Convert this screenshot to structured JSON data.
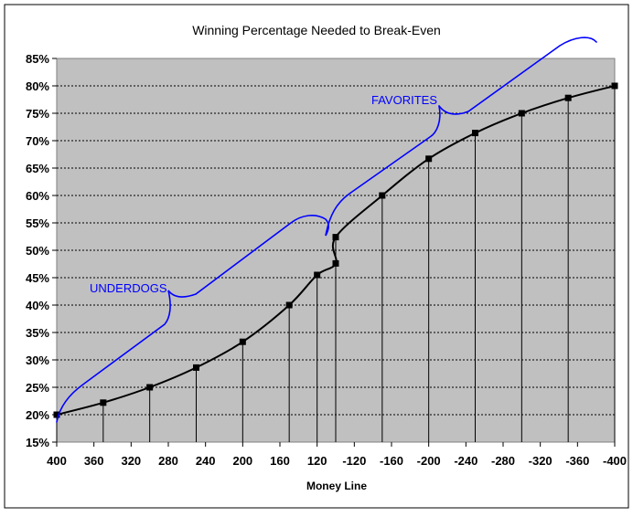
{
  "chart_data": {
    "type": "line",
    "title": "Winning Percentage Needed to Break-Even",
    "xlabel": "Money Line",
    "ylabel": "",
    "categories": [
      "400",
      "360",
      "320",
      "280",
      "240",
      "200",
      "160",
      "120",
      "-120",
      "-160",
      "-200",
      "-240",
      "-280",
      "-320",
      "-360",
      "-400"
    ],
    "x": [
      400,
      350,
      300,
      250,
      200,
      150,
      120,
      110,
      -110,
      -150,
      -200,
      -250,
      -300,
      -350,
      -400
    ],
    "series": [
      {
        "values": [
          20.0,
          22.2,
          25.0,
          28.6,
          33.3,
          40.0,
          45.5,
          47.6,
          52.4,
          60.0,
          66.7,
          71.4,
          75.0,
          77.8,
          80.0
        ],
        "marker": "square",
        "drop_lines": true
      }
    ],
    "trend_line": {
      "type": "smooth",
      "color": "#000000"
    },
    "ylim": [
      15,
      85
    ],
    "ytick_labels": [
      "15%",
      "20%",
      "25%",
      "30%",
      "35%",
      "40%",
      "45%",
      "50%",
      "55%",
      "60%",
      "65%",
      "70%",
      "75%",
      "80%",
      "85%"
    ],
    "grid": "horizontal-dotted",
    "plot_background": "#c0c0c0",
    "annotations": [
      {
        "text": "UNDERDOGS",
        "color": "#0000ff"
      },
      {
        "text": "FAVORITES",
        "color": "#0000ff"
      }
    ],
    "annotation_color": "#0000ff"
  }
}
